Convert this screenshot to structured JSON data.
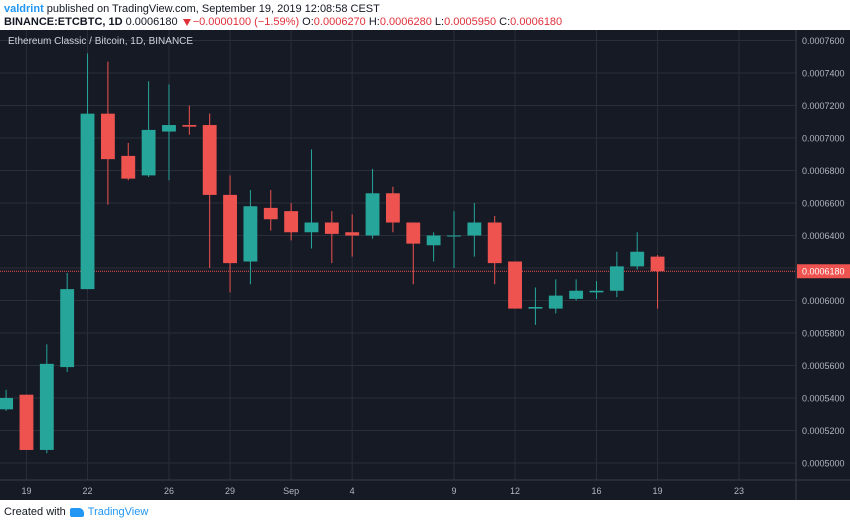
{
  "header": {
    "author": "valdrint",
    "published_text": "published on TradingView.com, September 19, 2019 12:08:58 CEST",
    "symbol": "BINANCE:ETCBTC, 1D",
    "last": "0.0006180",
    "change": "−0.0000100 (−1.59%)",
    "o_label": "O:",
    "o_value": "0.0006270",
    "h_label": "H:",
    "h_value": "0.0006280",
    "l_label": "L:",
    "l_value": "0.0005950",
    "c_label": "C:",
    "c_value": "0.0006180"
  },
  "footer": {
    "created_with": "Created with",
    "brand": "TradingView"
  },
  "colors": {
    "background": "#161a25",
    "grid": "#2a2e39",
    "up": "#26a69a",
    "down": "#ef5350",
    "price_line": "#ef5350",
    "axis_text": "#b2b5be"
  },
  "chart_data": {
    "type": "candlestick",
    "title": "Ethereum Classic / Bitcoin, 1D, BINANCE",
    "ylim": [
      0.0004895,
      0.0007665
    ],
    "y_ticks": [
      "0.0005000",
      "0.0005200",
      "0.0005400",
      "0.0005600",
      "0.0005800",
      "0.0006000",
      "0.0006200",
      "0.0006400",
      "0.0006600",
      "0.0006800",
      "0.0007000",
      "0.0007200",
      "0.0007400",
      "0.0007600"
    ],
    "x_tick_labels": [
      {
        "label": "19",
        "index": 1
      },
      {
        "label": "22",
        "index": 4
      },
      {
        "label": "26",
        "index": 8
      },
      {
        "label": "29",
        "index": 11
      },
      {
        "label": "Sep",
        "index": 14
      },
      {
        "label": "4",
        "index": 17
      },
      {
        "label": "9",
        "index": 22
      },
      {
        "label": "12",
        "index": 25
      },
      {
        "label": "16",
        "index": 29
      },
      {
        "label": "19",
        "index": 32
      },
      {
        "label": "23",
        "index": 36
      }
    ],
    "x_range": [
      -0.3,
      38.8
    ],
    "current_price": 0.000618,
    "current_price_label": "0.0006180",
    "candles": [
      {
        "o": 0.000533,
        "h": 0.000545,
        "l": 0.000532,
        "c": 0.00054
      },
      {
        "o": 0.000542,
        "h": 0.000542,
        "l": 0.000508,
        "c": 0.000508
      },
      {
        "o": 0.000508,
        "h": 0.000573,
        "l": 0.000506,
        "c": 0.000561
      },
      {
        "o": 0.000559,
        "h": 0.000617,
        "l": 0.000556,
        "c": 0.000607
      },
      {
        "o": 0.000607,
        "h": 0.000752,
        "l": 0.000607,
        "c": 0.000715
      },
      {
        "o": 0.000715,
        "h": 0.000747,
        "l": 0.000659,
        "c": 0.000687
      },
      {
        "o": 0.000689,
        "h": 0.000697,
        "l": 0.000674,
        "c": 0.000675
      },
      {
        "o": 0.000677,
        "h": 0.000735,
        "l": 0.000676,
        "c": 0.000705
      },
      {
        "o": 0.000704,
        "h": 0.000733,
        "l": 0.000674,
        "c": 0.000708
      },
      {
        "o": 0.000708,
        "h": 0.00072,
        "l": 0.000702,
        "c": 0.000707
      },
      {
        "o": 0.000708,
        "h": 0.000715,
        "l": 0.00062,
        "c": 0.000665
      },
      {
        "o": 0.000665,
        "h": 0.000677,
        "l": 0.000605,
        "c": 0.000623
      },
      {
        "o": 0.000624,
        "h": 0.000668,
        "l": 0.00061,
        "c": 0.000658
      },
      {
        "o": 0.000657,
        "h": 0.000668,
        "l": 0.000643,
        "c": 0.00065
      },
      {
        "o": 0.000655,
        "h": 0.00066,
        "l": 0.000637,
        "c": 0.000642
      },
      {
        "o": 0.000642,
        "h": 0.000693,
        "l": 0.000632,
        "c": 0.000648
      },
      {
        "o": 0.000648,
        "h": 0.000655,
        "l": 0.000623,
        "c": 0.000641
      },
      {
        "o": 0.000642,
        "h": 0.000653,
        "l": 0.000627,
        "c": 0.00064
      },
      {
        "o": 0.00064,
        "h": 0.000681,
        "l": 0.000638,
        "c": 0.000666
      },
      {
        "o": 0.000666,
        "h": 0.00067,
        "l": 0.000642,
        "c": 0.000648
      },
      {
        "o": 0.000648,
        "h": 0.000648,
        "l": 0.00061,
        "c": 0.000635
      },
      {
        "o": 0.000634,
        "h": 0.000642,
        "l": 0.000624,
        "c": 0.00064
      },
      {
        "o": 0.00064,
        "h": 0.000655,
        "l": 0.00062,
        "c": 0.00064
      },
      {
        "o": 0.00064,
        "h": 0.00066,
        "l": 0.000627,
        "c": 0.000648
      },
      {
        "o": 0.000648,
        "h": 0.000652,
        "l": 0.00061,
        "c": 0.000623
      },
      {
        "o": 0.000624,
        "h": 0.000624,
        "l": 0.000595,
        "c": 0.000595
      },
      {
        "o": 0.000595,
        "h": 0.000608,
        "l": 0.000585,
        "c": 0.000596
      },
      {
        "o": 0.000595,
        "h": 0.000613,
        "l": 0.000592,
        "c": 0.000603
      },
      {
        "o": 0.000601,
        "h": 0.000613,
        "l": 0.0006,
        "c": 0.000606
      },
      {
        "o": 0.000605,
        "h": 0.000612,
        "l": 0.000601,
        "c": 0.000606
      },
      {
        "o": 0.000606,
        "h": 0.00063,
        "l": 0.000602,
        "c": 0.000621
      },
      {
        "o": 0.000621,
        "h": 0.000642,
        "l": 0.000619,
        "c": 0.00063
      },
      {
        "o": 0.000627,
        "h": 0.000628,
        "l": 0.000595,
        "c": 0.000618
      }
    ]
  }
}
